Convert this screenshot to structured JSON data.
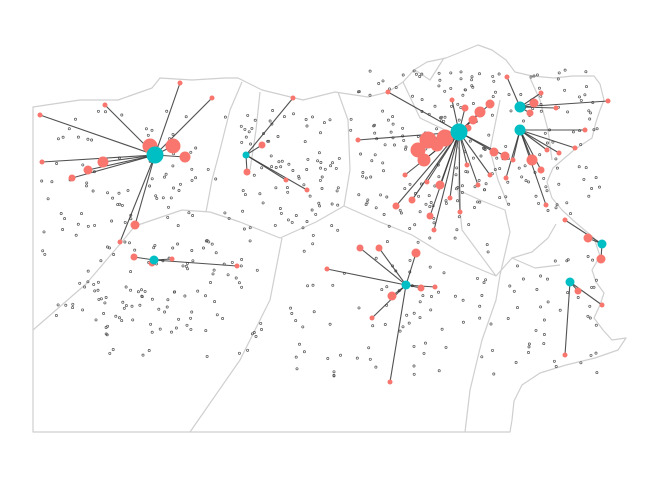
{
  "colors": {
    "background": "#ffffff",
    "border": "#cfcfcf",
    "spoke": "#333333",
    "origin": "#00BFC4",
    "destination": "#F8766D",
    "point": "#555555"
  },
  "map_data": {
    "type": "flow-map",
    "clusters": [
      {
        "hub": [
          155,
          155,
          8
        ],
        "dests": [
          [
            40,
            115,
            2
          ],
          [
            105,
            105,
            2
          ],
          [
            180,
            83,
            2
          ],
          [
            212,
            98,
            2
          ],
          [
            42,
            162,
            2
          ],
          [
            72,
            178,
            3
          ],
          [
            88,
            170,
            4
          ],
          [
            103,
            162,
            5
          ],
          [
            150,
            146,
            7
          ],
          [
            173,
            146,
            7
          ],
          [
            185,
            157,
            5
          ],
          [
            135,
            225,
            4
          ],
          [
            120,
            242,
            2
          ]
        ]
      },
      {
        "hub": [
          246,
          155,
          3
        ],
        "dests": [
          [
            293,
            98,
            2
          ],
          [
            262,
            145,
            3
          ],
          [
            247,
            172,
            3
          ],
          [
            286,
            180,
            2
          ],
          [
            307,
            190,
            2
          ]
        ]
      },
      {
        "hub": [
          154,
          260,
          4
        ],
        "dests": [
          [
            134,
            257,
            3
          ],
          [
            152,
            263,
            3
          ],
          [
            172,
            259,
            2
          ],
          [
            237,
            266,
            2
          ]
        ]
      },
      {
        "hub": [
          459,
          132,
          8
        ],
        "dests": [
          [
            358,
            140,
            2
          ],
          [
            388,
            92,
            2
          ],
          [
            405,
            175,
            2
          ],
          [
            418,
            150,
            7
          ],
          [
            424,
            160,
            6
          ],
          [
            428,
            140,
            8
          ],
          [
            437,
            145,
            6
          ],
          [
            445,
            138,
            8
          ],
          [
            452,
            100,
            2
          ],
          [
            465,
            108,
            3
          ],
          [
            468,
            128,
            3
          ],
          [
            473,
            120,
            4
          ],
          [
            480,
            112,
            5
          ],
          [
            490,
            104,
            4
          ],
          [
            494,
            152,
            4
          ],
          [
            505,
            156,
            4
          ],
          [
            467,
            165,
            2
          ],
          [
            478,
            185,
            2
          ],
          [
            396,
            206,
            3
          ],
          [
            412,
            200,
            3
          ],
          [
            427,
            182,
            2
          ],
          [
            430,
            216,
            3
          ],
          [
            434,
            230,
            2
          ],
          [
            440,
            185,
            4
          ],
          [
            450,
            198,
            2
          ],
          [
            460,
            212,
            2
          ],
          [
            490,
            175,
            2
          ]
        ]
      },
      {
        "hub": [
          520,
          107,
          5
        ],
        "dests": [
          [
            507,
            77,
            2
          ],
          [
            534,
            103,
            4
          ],
          [
            530,
            113,
            3
          ],
          [
            556,
            108,
            2
          ],
          [
            608,
            101,
            2
          ],
          [
            541,
            93,
            2
          ]
        ]
      },
      {
        "hub": [
          520,
          130,
          5
        ],
        "dests": [
          [
            532,
            160,
            5
          ],
          [
            547,
            150,
            2
          ],
          [
            559,
            153,
            2
          ],
          [
            575,
            148,
            2
          ],
          [
            585,
            130,
            2
          ],
          [
            541,
            170,
            3
          ],
          [
            546,
            205,
            2
          ],
          [
            506,
            178,
            2
          ],
          [
            513,
            160,
            2
          ]
        ]
      },
      {
        "hub": [
          406,
          285,
          4
        ],
        "dests": [
          [
            327,
            269,
            2
          ],
          [
            360,
            248,
            3
          ],
          [
            379,
            248,
            3
          ],
          [
            392,
            296,
            4
          ],
          [
            372,
            318,
            2
          ],
          [
            416,
            253,
            4
          ],
          [
            421,
            288,
            3
          ],
          [
            435,
            287,
            2
          ],
          [
            390,
            382,
            2
          ]
        ]
      },
      {
        "hub": [
          602,
          244,
          4
        ],
        "dests": [
          [
            565,
            220,
            2
          ],
          [
            588,
            238,
            4
          ],
          [
            601,
            259,
            4
          ]
        ]
      },
      {
        "hub": [
          570,
          282,
          4
        ],
        "dests": [
          [
            578,
            291,
            3
          ],
          [
            565,
            355,
            2
          ],
          [
            602,
            305,
            2
          ]
        ]
      }
    ]
  }
}
